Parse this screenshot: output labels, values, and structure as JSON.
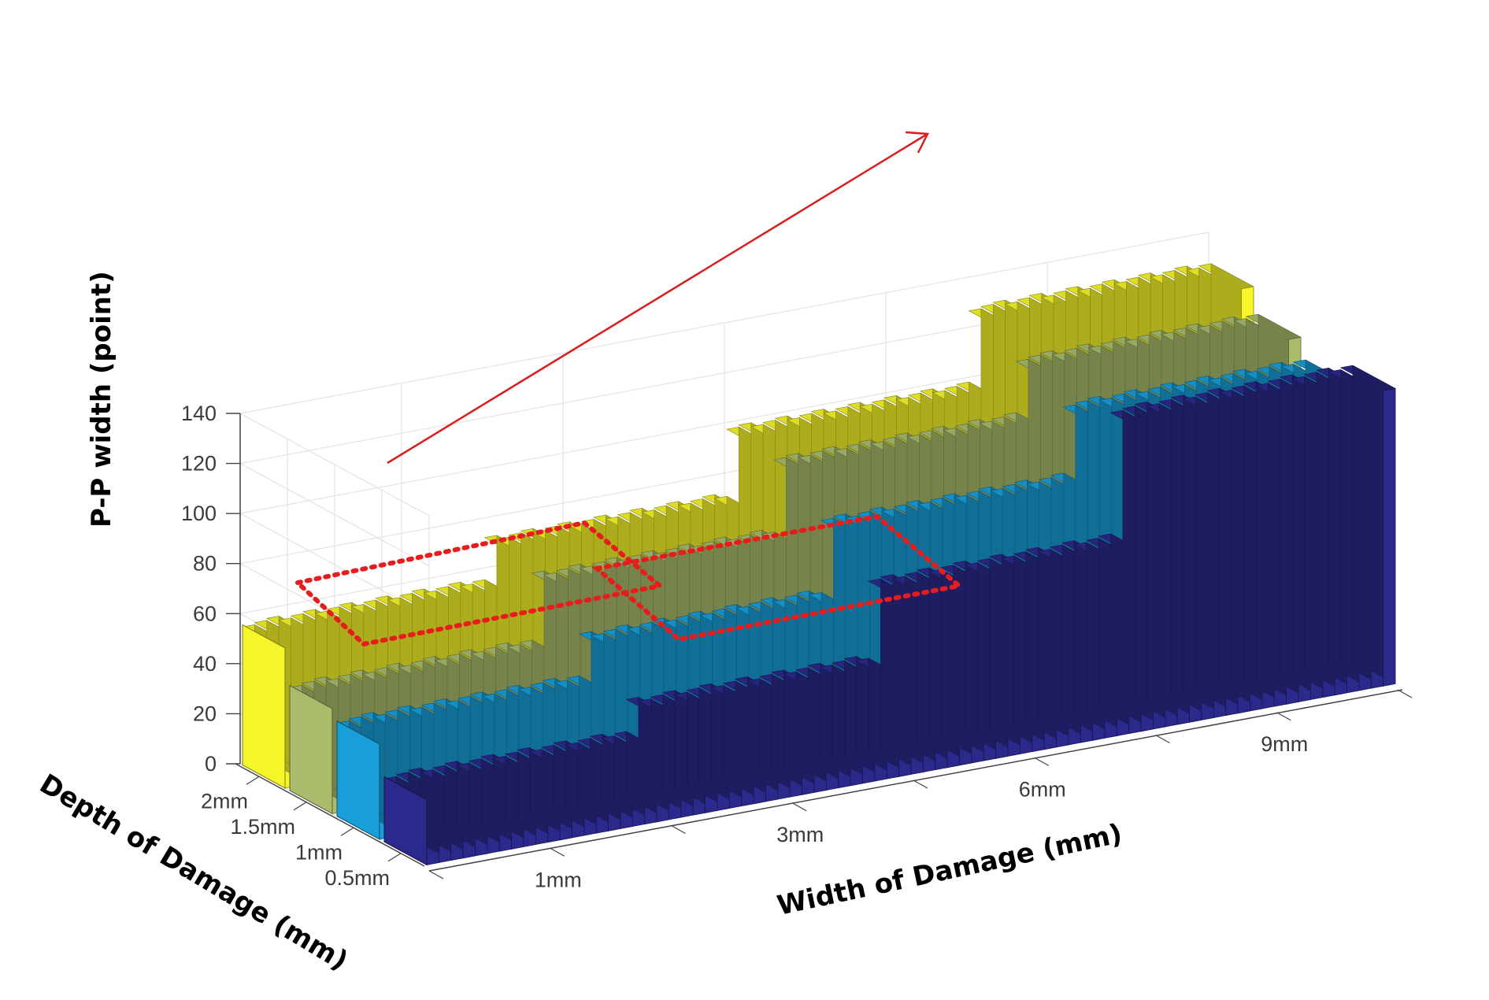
{
  "chart_data": {
    "type": "bar3d",
    "title": "",
    "zlabel": "P-P width  (point)",
    "xlabel": "Width of Damage (mm)",
    "ylabel": "Depth of Damage (mm)",
    "zlim": [
      0,
      140
    ],
    "zticks": [
      "0",
      "20",
      "40",
      "60",
      "80",
      "100",
      "120",
      "140"
    ],
    "width_ticks": [
      "1mm",
      "3mm",
      "6mm",
      "9mm"
    ],
    "depth_ticks": [
      "0.5mm",
      "1mm",
      "1.5mm",
      "2mm"
    ],
    "grid": true,
    "bars_per_width": 20,
    "series": [
      {
        "depth": "2mm",
        "color": "#f5f52a",
        "values_by_width": [
          56,
          72,
          98,
          128
        ]
      },
      {
        "depth": "1.5mm",
        "color": "#a8bc6c",
        "values_by_width": [
          42,
          68,
          96,
          118
        ]
      },
      {
        "depth": "1mm",
        "color": "#189ed8",
        "values_by_width": [
          38,
          54,
          82,
          110
        ]
      },
      {
        "depth": "0.5mm",
        "color": "#2b2a8c",
        "values_by_width": [
          26,
          38,
          68,
          118
        ]
      }
    ],
    "annotations": [
      {
        "type": "arrow",
        "color": "#d81e1e"
      },
      {
        "type": "dashed-highlight",
        "color": "#e81c1c"
      },
      {
        "type": "dashed-highlight",
        "color": "#e81c1c"
      }
    ]
  }
}
